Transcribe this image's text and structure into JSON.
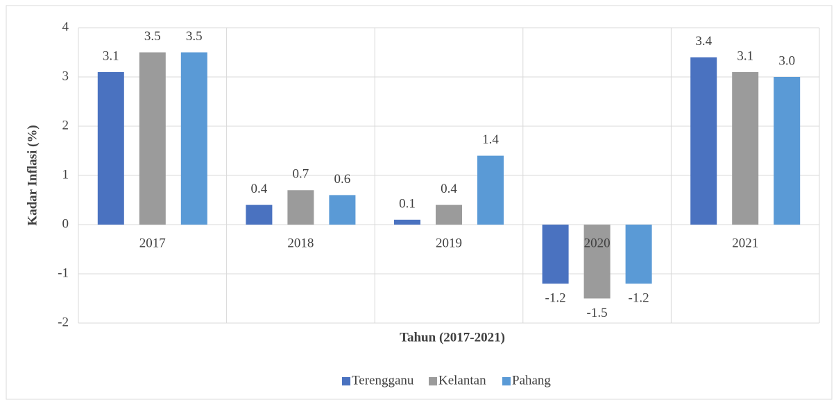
{
  "chart_data": {
    "type": "bar",
    "y_label": "Kadar Inflasi (%)",
    "x_label": "Tahun (2017-2021)",
    "categories": [
      "2017",
      "2018",
      "2019",
      "2020",
      "2021"
    ],
    "series": [
      {
        "name": "Terengganu",
        "color": "#4a72c0",
        "values": [
          3.1,
          0.4,
          0.1,
          -1.2,
          3.4
        ],
        "value_labels": [
          "3.1",
          "0.4",
          "0.1",
          "-1.2",
          "3.4"
        ]
      },
      {
        "name": "Kelantan",
        "color": "#9b9b9b",
        "values": [
          3.5,
          0.7,
          0.4,
          -1.5,
          3.1
        ],
        "value_labels": [
          "3.5",
          "0.7",
          "0.4",
          "-1.5",
          "3.1"
        ]
      },
      {
        "name": "Pahang",
        "color": "#5a9ad6",
        "values": [
          3.5,
          0.6,
          1.4,
          -1.2,
          3.0
        ],
        "value_labels": [
          "3.5",
          "0.6",
          "1.4",
          "-1.2",
          "3.0"
        ]
      }
    ],
    "ylim": [
      -2,
      4
    ],
    "yticks": [
      -2,
      -1,
      0,
      1,
      2,
      3,
      4
    ],
    "grid": true,
    "legend": "bottom"
  }
}
